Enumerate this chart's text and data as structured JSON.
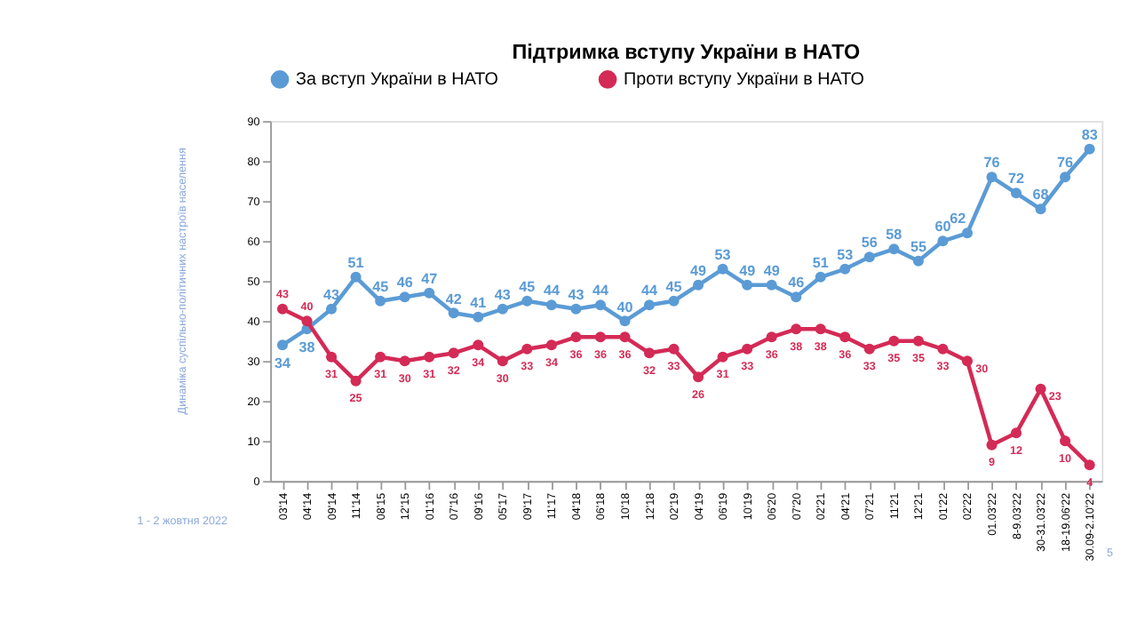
{
  "chart_data": {
    "type": "line",
    "title": "Підтримка вступу України в НАТО",
    "categories": [
      "03'14",
      "04'14",
      "09'14",
      "11'14",
      "08'15",
      "12'15",
      "01'16",
      "07'16",
      "09'16",
      "05'17",
      "09'17",
      "11'17",
      "04'18",
      "06'18",
      "10'18",
      "12'18",
      "02'19",
      "04'19",
      "06'19",
      "10'19",
      "06'20",
      "07'20",
      "02'21",
      "04'21",
      "07'21",
      "11'21",
      "12'21",
      "01'22",
      "02'22",
      "01.03'22",
      "8-9.03'22",
      "30-31.03'22",
      "18-19.06'22",
      "30.09-2.10'22"
    ],
    "series": [
      {
        "name": "За вступ України в НАТО",
        "color": "#5b9bd5",
        "values": [
          34,
          38,
          43,
          51,
          45,
          46,
          47,
          42,
          41,
          43,
          45,
          44,
          43,
          44,
          40,
          44,
          45,
          49,
          53,
          49,
          49,
          46,
          51,
          53,
          56,
          58,
          55,
          60,
          62,
          76,
          72,
          68,
          76,
          83
        ]
      },
      {
        "name": "Проти вступу України в НАТО",
        "color": "#d42a56",
        "values": [
          43,
          40,
          31,
          25,
          31,
          30,
          31,
          32,
          34,
          30,
          33,
          34,
          36,
          36,
          36,
          32,
          33,
          26,
          31,
          33,
          36,
          38,
          38,
          36,
          33,
          35,
          35,
          33,
          30,
          9,
          12,
          23,
          10,
          4
        ]
      }
    ],
    "ylim": [
      0,
      90
    ],
    "yticks": [
      0,
      10,
      20,
      30,
      40,
      50,
      60,
      70,
      80,
      90
    ],
    "grid": false,
    "legend": "top",
    "marker": "circle",
    "line_style": "solid",
    "data_labels": true,
    "annotations": [
      "Динаміка суспільно-політичних настроїв населення",
      "1 - 2 жовтня 2022",
      "5"
    ]
  }
}
